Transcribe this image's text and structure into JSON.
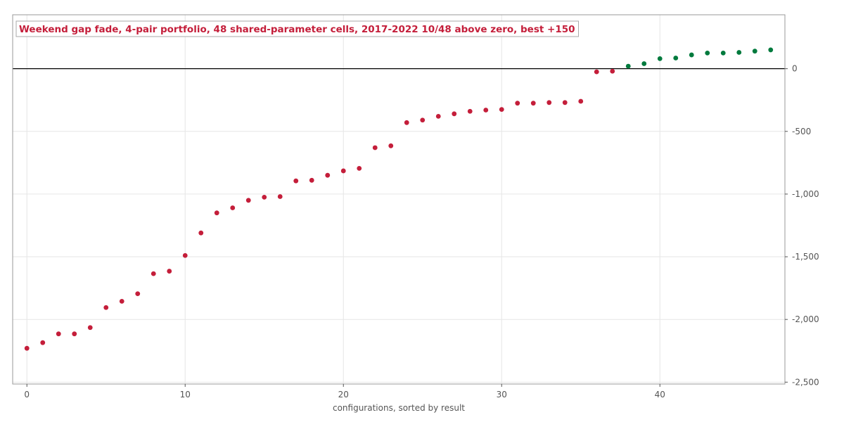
{
  "chart_data": {
    "type": "scatter",
    "title": "Weekend gap fade, 4-pair portfolio, 48 shared-parameter cells, 2017-2022   10/48 above zero, best +150",
    "xlabel": "configurations, sorted by result",
    "ylabel": "",
    "xlim": [
      -0.9,
      47.9
    ],
    "ylim": [
      -2515,
      430
    ],
    "x_ticks": [
      0,
      10,
      20,
      30,
      40
    ],
    "y_ticks": [
      0,
      -500,
      -1000,
      -1500,
      -2000,
      -2500
    ],
    "y_tick_labels": [
      "0",
      "-500",
      "-1,000",
      "-1,500",
      "-2,000",
      "-2,500"
    ],
    "y_axis_side": "right",
    "grid": true,
    "reference_line": 0,
    "colors": {
      "negative": "#c41e3a",
      "positive": "#007a3d",
      "title": "#c41e3a",
      "zero_line": "#000000",
      "grid": "#e6e6e6",
      "frame": "#999999"
    },
    "x": [
      0,
      1,
      2,
      3,
      4,
      5,
      6,
      7,
      8,
      9,
      10,
      11,
      12,
      13,
      14,
      15,
      16,
      17,
      18,
      19,
      20,
      21,
      22,
      23,
      24,
      25,
      26,
      27,
      28,
      29,
      30,
      31,
      32,
      33,
      34,
      35,
      36,
      37,
      38,
      39,
      40,
      41,
      42,
      43,
      44,
      45,
      46,
      47
    ],
    "y": [
      -2230,
      -2185,
      -2115,
      -2115,
      -2065,
      -1905,
      -1855,
      -1795,
      -1635,
      -1615,
      -1490,
      -1310,
      -1150,
      -1110,
      -1050,
      -1025,
      -1020,
      -895,
      -890,
      -850,
      -815,
      -795,
      -630,
      -615,
      -430,
      -410,
      -380,
      -360,
      -340,
      -330,
      -325,
      -275,
      -275,
      -270,
      -270,
      -260,
      -25,
      -20,
      20,
      40,
      80,
      85,
      110,
      125,
      125,
      130,
      140,
      150
    ]
  }
}
